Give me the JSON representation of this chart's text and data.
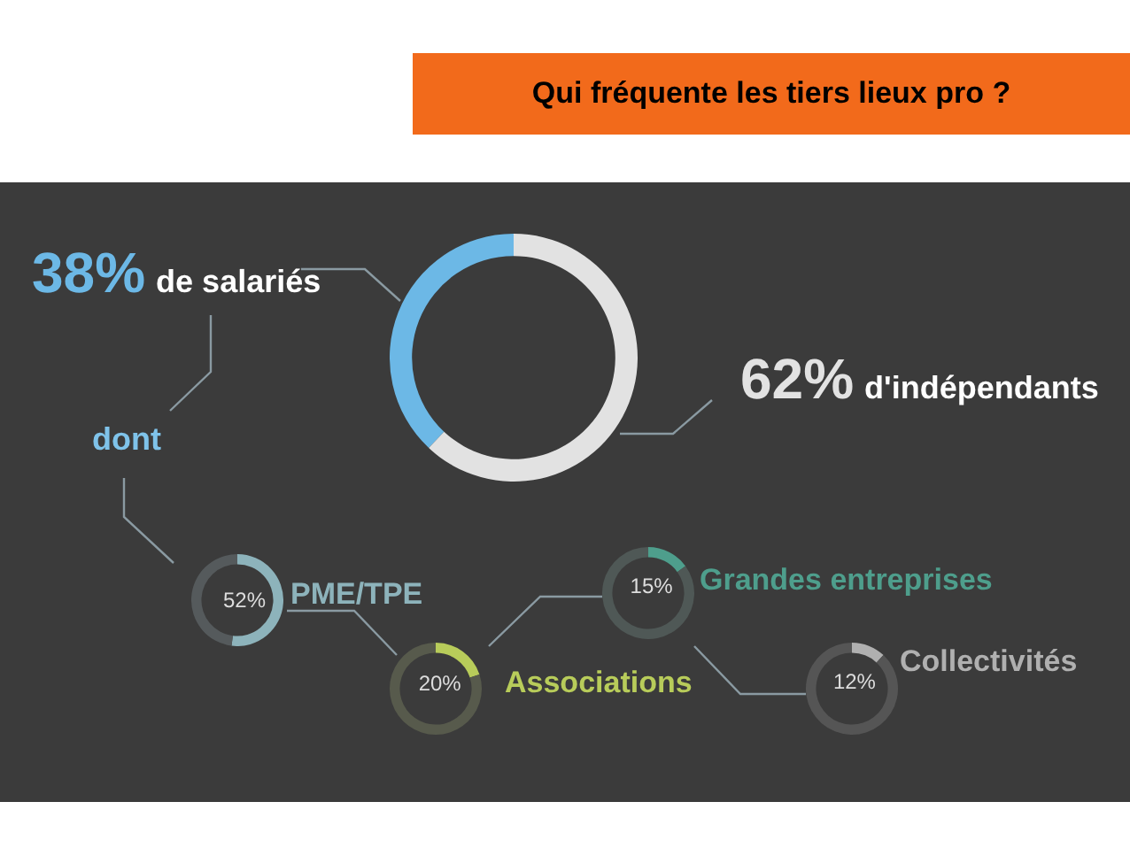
{
  "chart_data": [
    {
      "type": "donut",
      "title": "Qui fréquente les tiers lieux pro ?",
      "categories": [
        "de salariés",
        "d'indépendants"
      ],
      "values": [
        38,
        62
      ],
      "value_labels": [
        "38%",
        "62%"
      ],
      "colors": [
        "#6cb8e6",
        "#e2e2e2"
      ],
      "annotations": [
        "dont"
      ]
    },
    {
      "type": "donut",
      "categories": [
        "PME/TPE",
        null
      ],
      "values": [
        52,
        48
      ],
      "value_labels": [
        "52%",
        null
      ],
      "colors": [
        "#8db3bb",
        "#555a5c"
      ]
    },
    {
      "type": "donut",
      "categories": [
        "Associations",
        null
      ],
      "values": [
        20,
        80
      ],
      "value_labels": [
        "20%",
        null
      ],
      "colors": [
        "#b8cc5a",
        "#575a4c"
      ]
    },
    {
      "type": "donut",
      "categories": [
        "Grandes entreprises",
        null
      ],
      "values": [
        15,
        85
      ],
      "value_labels": [
        "15%",
        null
      ],
      "colors": [
        "#4e9e8c",
        "#4f5856"
      ]
    },
    {
      "type": "donut",
      "categories": [
        "Collectivités",
        null
      ],
      "values": [
        12,
        88
      ],
      "value_labels": [
        "12%",
        null
      ],
      "colors": [
        "#b0b0b0",
        "#555555"
      ]
    }
  ]
}
